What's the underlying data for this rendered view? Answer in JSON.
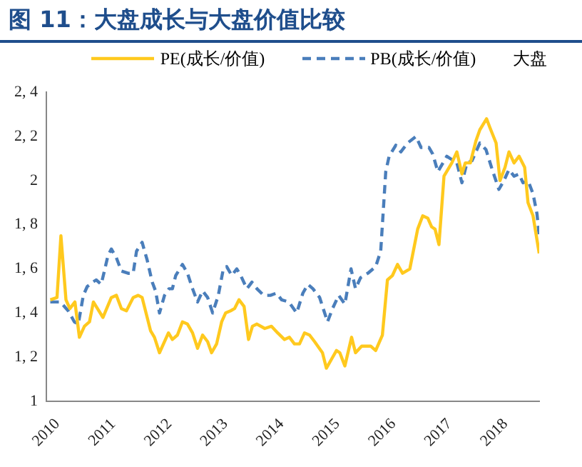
{
  "chart_data": {
    "type": "line",
    "title": "图 11：大盘成长与大盘价值比较",
    "legend": "top",
    "legend_title": "大盘",
    "grid": false,
    "xlim": [
      2010,
      2018.8
    ],
    "xticks": [
      2010,
      2011,
      2012,
      2013,
      2014,
      2015,
      2016,
      2017,
      2018
    ],
    "ylim": [
      1,
      2.4
    ],
    "yticks": [
      1,
      {
        "value": 1.2,
        "label": "1, 2"
      },
      {
        "value": 1.4,
        "label": "1, 4"
      },
      {
        "value": 1.6,
        "label": "1, 6"
      },
      {
        "value": 1.8,
        "label": "1, 8"
      },
      2,
      {
        "value": 2.2,
        "label": "2, 2"
      },
      {
        "value": 2.4,
        "label": "2, 4"
      }
    ],
    "series": [
      {
        "name": "PE(成长/价值)",
        "color": "#ffc91e",
        "line_style": "solid",
        "x": [
          2010.07,
          2010.19,
          2010.26,
          2010.35,
          2010.42,
          2010.51,
          2010.59,
          2010.68,
          2010.77,
          2010.84,
          2011.01,
          2011.16,
          2011.25,
          2011.34,
          2011.43,
          2011.55,
          2011.64,
          2011.71,
          2011.86,
          2011.93,
          2012.02,
          2012.18,
          2012.25,
          2012.34,
          2012.43,
          2012.52,
          2012.61,
          2012.7,
          2012.79,
          2012.88,
          2012.95,
          2013.04,
          2013.13,
          2013.2,
          2013.29,
          2013.36,
          2013.44,
          2013.53,
          2013.61,
          2013.68,
          2013.76,
          2013.9,
          2014.02,
          2014.13,
          2014.25,
          2014.34,
          2014.43,
          2014.52,
          2014.61,
          2014.7,
          2014.79,
          2014.93,
          2015.0,
          2015.09,
          2015.18,
          2015.24,
          2015.33,
          2015.45,
          2015.52,
          2015.63,
          2015.79,
          2015.88,
          2016.0,
          2016.09,
          2016.18,
          2016.27,
          2016.36,
          2016.49,
          2016.63,
          2016.72,
          2016.81,
          2016.88,
          2016.94,
          2017.01,
          2017.1,
          2017.24,
          2017.33,
          2017.42,
          2017.48,
          2017.57,
          2017.67,
          2017.74,
          2017.86,
          2017.92,
          2018.03,
          2018.1,
          2018.19,
          2018.26,
          2018.35,
          2018.44,
          2018.54,
          2018.6,
          2018.69,
          2018.8
        ],
        "values": [
          1.46,
          1.47,
          1.75,
          1.46,
          1.42,
          1.45,
          1.29,
          1.34,
          1.36,
          1.45,
          1.38,
          1.47,
          1.48,
          1.42,
          1.41,
          1.47,
          1.48,
          1.47,
          1.32,
          1.29,
          1.22,
          1.31,
          1.28,
          1.3,
          1.36,
          1.35,
          1.31,
          1.24,
          1.3,
          1.27,
          1.22,
          1.26,
          1.36,
          1.4,
          1.41,
          1.42,
          1.46,
          1.43,
          1.28,
          1.34,
          1.35,
          1.33,
          1.34,
          1.31,
          1.28,
          1.29,
          1.26,
          1.26,
          1.31,
          1.3,
          1.27,
          1.22,
          1.15,
          1.19,
          1.23,
          1.22,
          1.16,
          1.29,
          1.22,
          1.25,
          1.25,
          1.23,
          1.3,
          1.55,
          1.57,
          1.62,
          1.58,
          1.6,
          1.78,
          1.84,
          1.83,
          1.79,
          1.78,
          1.71,
          2.02,
          2.08,
          2.13,
          2.03,
          2.08,
          2.08,
          2.18,
          2.23,
          2.28,
          2.24,
          2.17,
          2.0,
          2.06,
          2.13,
          2.08,
          2.11,
          2.06,
          1.9,
          1.84,
          1.67
        ]
      },
      {
        "name": "PB(成长/价值)",
        "color": "#4a7ebb",
        "line_style": "dashed",
        "x": [
          2010.07,
          2010.25,
          2010.39,
          2010.5,
          2010.57,
          2010.66,
          2010.73,
          2010.83,
          2010.89,
          2010.98,
          2011.1,
          2011.16,
          2011.25,
          2011.34,
          2011.46,
          2011.55,
          2011.61,
          2011.71,
          2011.8,
          2011.89,
          2011.95,
          2012.02,
          2012.11,
          2012.19,
          2012.25,
          2012.31,
          2012.43,
          2012.52,
          2012.61,
          2012.7,
          2012.79,
          2012.88,
          2012.97,
          2013.07,
          2013.16,
          2013.22,
          2013.31,
          2013.4,
          2013.47,
          2013.58,
          2013.67,
          2013.76,
          2013.88,
          2014.0,
          2014.11,
          2014.2,
          2014.33,
          2014.47,
          2014.58,
          2014.67,
          2014.76,
          2014.88,
          2015.02,
          2015.11,
          2015.22,
          2015.33,
          2015.44,
          2015.52,
          2015.61,
          2015.74,
          2015.88,
          2015.97,
          2016.06,
          2016.12,
          2016.24,
          2016.33,
          2016.45,
          2016.6,
          2016.69,
          2016.83,
          2016.9,
          2016.99,
          2017.15,
          2017.33,
          2017.42,
          2017.51,
          2017.6,
          2017.74,
          2017.85,
          2017.96,
          2018.08,
          2018.17,
          2018.26,
          2018.35,
          2018.44,
          2018.51,
          2018.6,
          2018.69,
          2018.76,
          2018.8
        ],
        "values": [
          1.45,
          1.45,
          1.41,
          1.36,
          1.35,
          1.48,
          1.52,
          1.54,
          1.55,
          1.53,
          1.66,
          1.69,
          1.65,
          1.59,
          1.58,
          1.58,
          1.68,
          1.72,
          1.64,
          1.54,
          1.5,
          1.4,
          1.48,
          1.51,
          1.51,
          1.57,
          1.62,
          1.58,
          1.51,
          1.45,
          1.5,
          1.47,
          1.4,
          1.48,
          1.6,
          1.61,
          1.57,
          1.6,
          1.57,
          1.51,
          1.54,
          1.51,
          1.48,
          1.48,
          1.49,
          1.46,
          1.45,
          1.4,
          1.49,
          1.53,
          1.51,
          1.47,
          1.36,
          1.42,
          1.48,
          1.44,
          1.6,
          1.51,
          1.56,
          1.58,
          1.61,
          1.68,
          2.04,
          2.11,
          2.16,
          2.13,
          2.17,
          2.2,
          2.15,
          2.15,
          2.12,
          2.04,
          2.11,
          2.08,
          1.99,
          2.08,
          2.09,
          2.17,
          2.14,
          2.05,
          1.96,
          2.0,
          2.05,
          2.02,
          2.03,
          1.99,
          2.0,
          1.94,
          1.85,
          1.75
        ]
      }
    ]
  }
}
